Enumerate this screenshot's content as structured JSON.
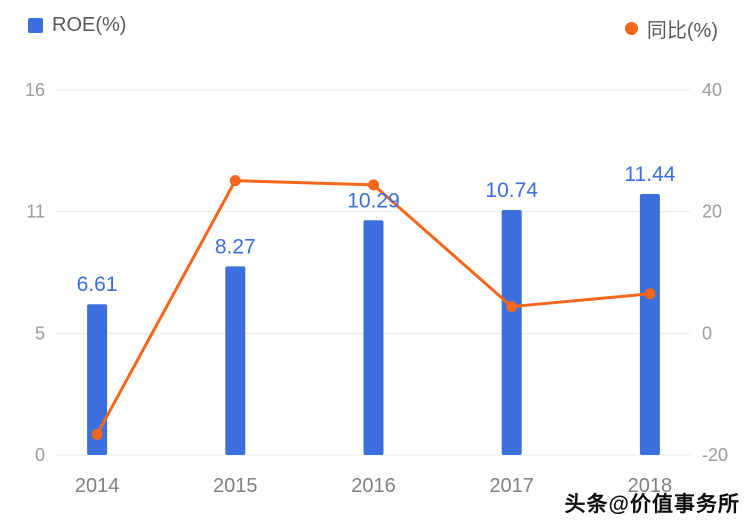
{
  "legend": {
    "roe": "ROE(%)",
    "yoy": "同比(%)"
  },
  "watermark": "头条@价值事务所",
  "colors": {
    "bar": "#3d6ede",
    "bar_label": "#3d6ede",
    "line": "#f2671c",
    "grid": "#eaeaea",
    "axis_text": "#9a9a9a",
    "x_text": "#808080"
  },
  "chart_data": {
    "type": "bar+line combo",
    "title": "",
    "categories": [
      "2014",
      "2015",
      "2016",
      "2017",
      "2018"
    ],
    "series": [
      {
        "name": "ROE(%)",
        "type": "bar",
        "axis": "left",
        "values": [
          6.61,
          8.27,
          10.29,
          10.74,
          11.44
        ],
        "labels": [
          "6.61",
          "8.27",
          "10.29",
          "10.74",
          "11.44"
        ]
      },
      {
        "name": "同比(%)",
        "type": "line",
        "axis": "right",
        "values": [
          -16.6,
          25.1,
          24.4,
          4.4,
          6.5
        ]
      }
    ],
    "left_axis": {
      "label": "ROE(%)",
      "ticks": [
        0,
        5,
        11,
        16
      ],
      "min": 0,
      "max": 16
    },
    "right_axis": {
      "label": "同比(%)",
      "ticks": [
        -20,
        0,
        20,
        40
      ],
      "min": -20,
      "max": 40
    },
    "grid": true,
    "legend_position": "top"
  }
}
